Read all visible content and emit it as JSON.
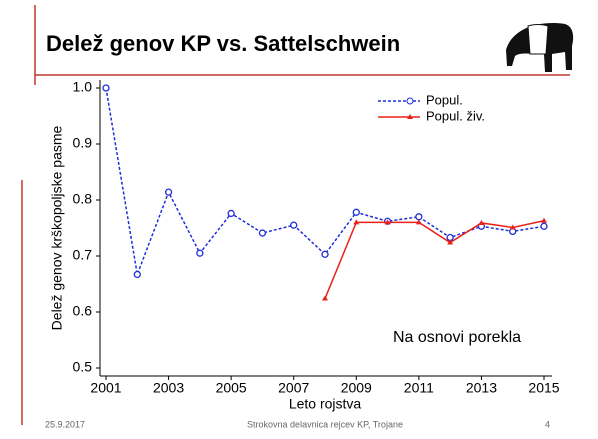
{
  "header": {
    "title": "Delež genov KP vs. Sattelschwein"
  },
  "chart_data": {
    "type": "line",
    "y_label": "Delež genov krškopoljske pasme",
    "x_label": "Leto rojstva",
    "annotation": "Na osnovi porekla",
    "x": [
      2001,
      2002,
      2003,
      2004,
      2005,
      2006,
      2007,
      2008,
      2009,
      2010,
      2011,
      2012,
      2013,
      2014,
      2015
    ],
    "series": [
      {
        "name": "Popul.",
        "color": "#1f2fd8",
        "marker": "circle",
        "dashed": true,
        "values": [
          1.0,
          0.667,
          0.814,
          0.705,
          0.776,
          0.741,
          0.755,
          0.703,
          0.778,
          0.762,
          0.77,
          0.733,
          0.753,
          0.744,
          0.753
        ]
      },
      {
        "name": "Popul. živ.",
        "color": "#e8221b",
        "marker": "triangle",
        "dashed": false,
        "values": [
          null,
          null,
          null,
          null,
          null,
          null,
          null,
          0.624,
          0.76,
          0.76,
          0.76,
          0.724,
          0.759,
          0.751,
          0.763
        ]
      }
    ],
    "xlim": [
      2001,
      2015
    ],
    "xticks": [
      2001,
      2003,
      2005,
      2007,
      2009,
      2011,
      2013,
      2015
    ],
    "ylim": [
      0.5,
      1.0
    ],
    "yticks": [
      0.5,
      0.6,
      0.7,
      0.8,
      0.9,
      {
        "value": 1.0,
        "label": "1.0"
      }
    ],
    "legend": "top-right"
  },
  "footer": {
    "date": "25.9.2017",
    "event": "Strokovna delavnica rejcev KP, Trojane",
    "page": "4"
  }
}
